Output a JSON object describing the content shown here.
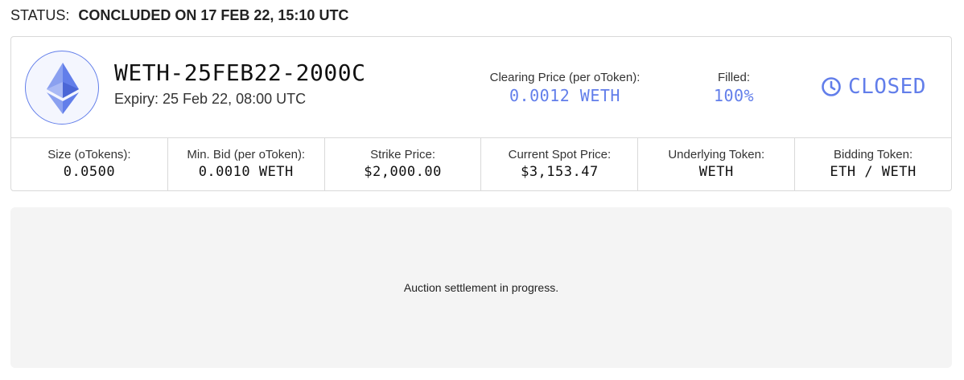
{
  "status": {
    "label": "STATUS:",
    "value": "CONCLUDED ON 17 FEB 22, 15:10 UTC"
  },
  "auction": {
    "token_icon": "ethereum-icon",
    "title": "WETH-25FEB22-2000C",
    "expiry": "Expiry: 25 Feb 22, 08:00 UTC",
    "clearing_price": {
      "label": "Clearing Price (per oToken):",
      "value": "0.0012 WETH"
    },
    "filled": {
      "label": "Filled:",
      "value": "100%"
    },
    "state": {
      "icon": "clock-icon",
      "label": "CLOSED"
    }
  },
  "details": [
    {
      "label": "Size (oTokens):",
      "value": "0.0500"
    },
    {
      "label": "Min. Bid (per oToken):",
      "value": "0.0010 WETH"
    },
    {
      "label": "Strike Price:",
      "value": "$2,000.00"
    },
    {
      "label": "Current Spot Price:",
      "value": "$3,153.47"
    },
    {
      "label": "Underlying Token:",
      "value": "WETH"
    },
    {
      "label": "Bidding Token:",
      "value": "ETH / WETH"
    }
  ],
  "settlement": {
    "message": "Auction settlement in progress."
  },
  "colors": {
    "accent": "#627eea",
    "border": "#d9d9d9",
    "panel": "#f4f4f4"
  }
}
